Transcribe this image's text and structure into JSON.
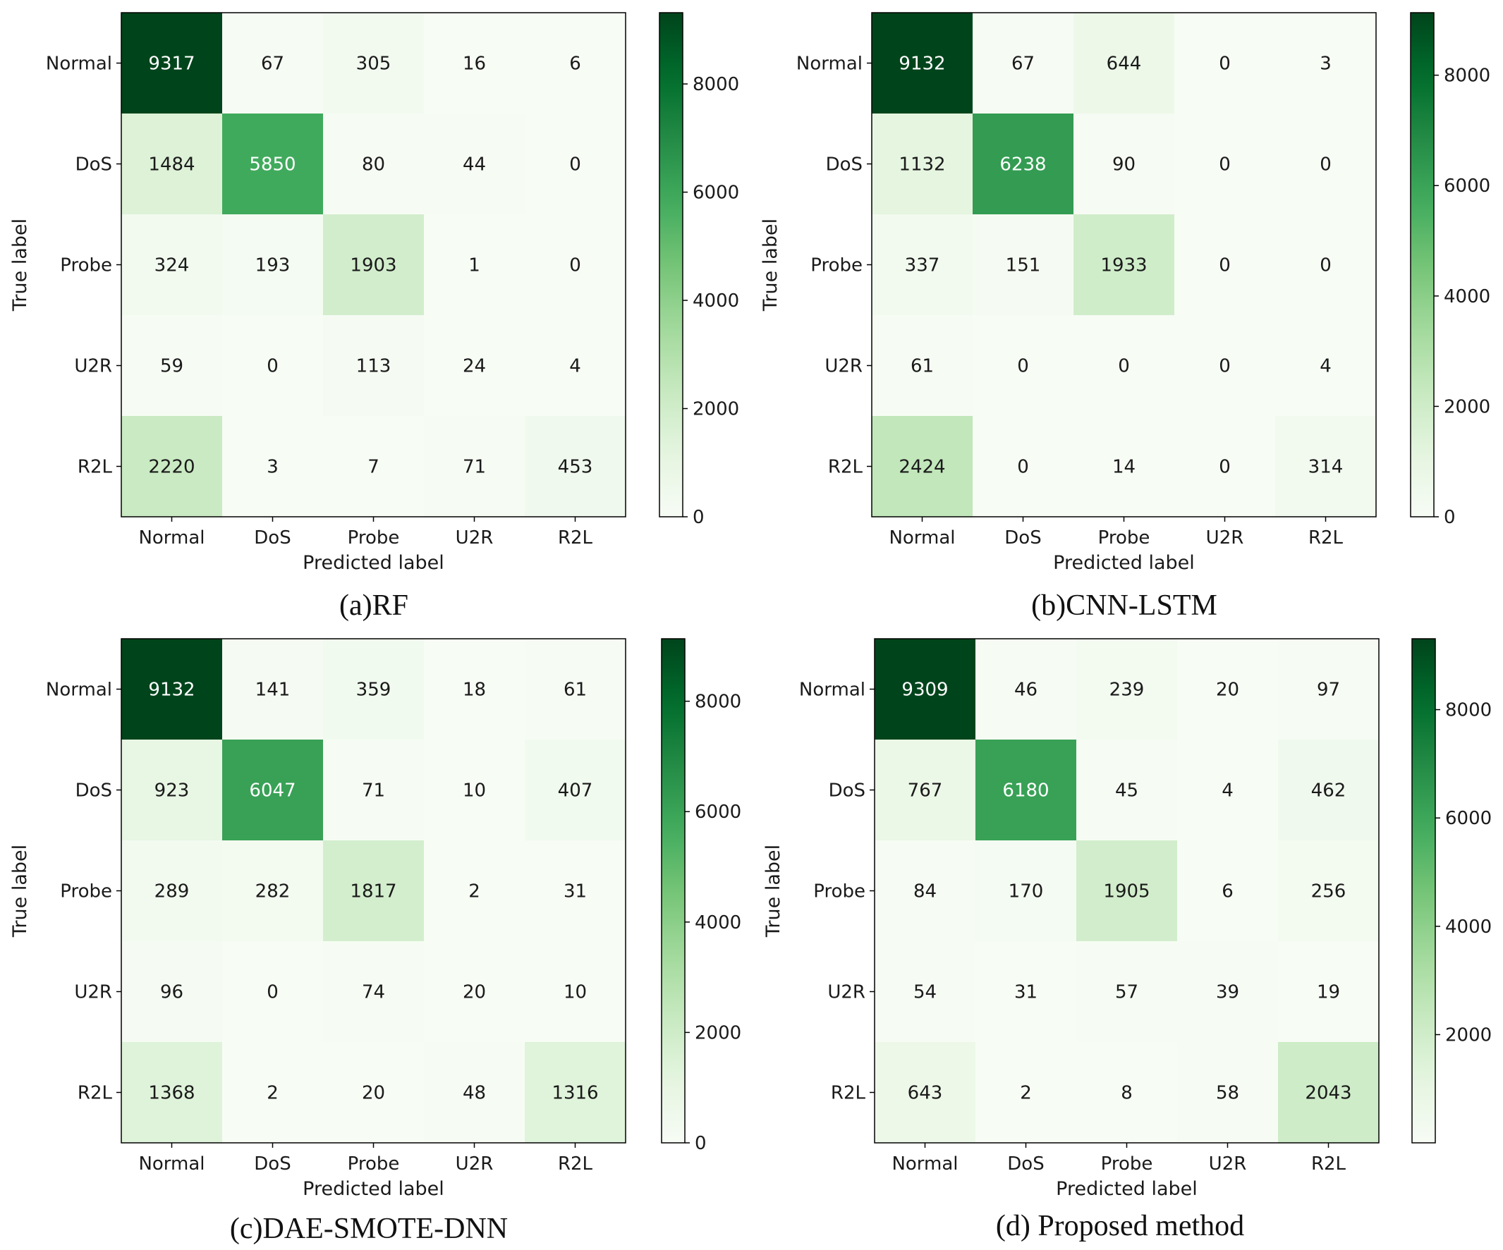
{
  "chart_data": [
    {
      "type": "heatmap",
      "title": "(a)RF",
      "xlabel": "Predicted label",
      "ylabel": "True label",
      "x_categories": [
        "Normal",
        "DoS",
        "Probe",
        "U2R",
        "R2L"
      ],
      "y_categories": [
        "Normal",
        "DoS",
        "Probe",
        "U2R",
        "R2L"
      ],
      "values": [
        [
          9317,
          67,
          305,
          16,
          6
        ],
        [
          1484,
          5850,
          80,
          44,
          0
        ],
        [
          324,
          193,
          1903,
          1,
          0
        ],
        [
          59,
          0,
          113,
          24,
          4
        ],
        [
          2220,
          3,
          7,
          71,
          453
        ]
      ],
      "colorbar": {
        "min": 0,
        "max": 9317,
        "ticks": [
          0,
          2000,
          4000,
          6000,
          8000
        ]
      },
      "colormap": "Greens"
    },
    {
      "type": "heatmap",
      "title": "(b)CNN-LSTM",
      "xlabel": "Predicted label",
      "ylabel": "True label",
      "x_categories": [
        "Normal",
        "DoS",
        "Probe",
        "U2R",
        "R2L"
      ],
      "y_categories": [
        "Normal",
        "DoS",
        "Probe",
        "U2R",
        "R2L"
      ],
      "values": [
        [
          9132,
          67,
          644,
          0,
          3
        ],
        [
          1132,
          6238,
          90,
          0,
          0
        ],
        [
          337,
          151,
          1933,
          0,
          0
        ],
        [
          61,
          0,
          0,
          0,
          4
        ],
        [
          2424,
          0,
          14,
          0,
          314
        ]
      ],
      "colorbar": {
        "min": 0,
        "max": 9132,
        "ticks": [
          0,
          2000,
          4000,
          6000,
          8000
        ]
      },
      "colormap": "Greens"
    },
    {
      "type": "heatmap",
      "title": "(c)DAE-SMOTE-DNN",
      "xlabel": "Predicted label",
      "ylabel": "True label",
      "x_categories": [
        "Normal",
        "DoS",
        "Probe",
        "U2R",
        "R2L"
      ],
      "y_categories": [
        "Normal",
        "DoS",
        "Probe",
        "U2R",
        "R2L"
      ],
      "values": [
        [
          9132,
          141,
          359,
          18,
          61
        ],
        [
          923,
          6047,
          71,
          10,
          407
        ],
        [
          289,
          282,
          1817,
          2,
          31
        ],
        [
          96,
          0,
          74,
          20,
          10
        ],
        [
          1368,
          2,
          20,
          48,
          1316
        ]
      ],
      "colorbar": {
        "min": 0,
        "max": 9132,
        "ticks": [
          0,
          2000,
          4000,
          6000,
          8000
        ]
      },
      "colormap": "Greens"
    },
    {
      "type": "heatmap",
      "title": "(d) Proposed method",
      "xlabel": "Predicted label",
      "ylabel": "True label",
      "x_categories": [
        "Normal",
        "DoS",
        "Probe",
        "U2R",
        "R2L"
      ],
      "y_categories": [
        "Normal",
        "DoS",
        "Probe",
        "U2R",
        "R2L"
      ],
      "values": [
        [
          9309,
          46,
          239,
          20,
          97
        ],
        [
          767,
          6180,
          45,
          4,
          462
        ],
        [
          84,
          170,
          1905,
          6,
          256
        ],
        [
          54,
          31,
          57,
          39,
          19
        ],
        [
          643,
          2,
          8,
          58,
          2043
        ]
      ],
      "colorbar": {
        "min": 2,
        "max": 9309,
        "ticks": [
          2000,
          4000,
          6000,
          8000
        ]
      },
      "colormap": "Greens"
    }
  ]
}
